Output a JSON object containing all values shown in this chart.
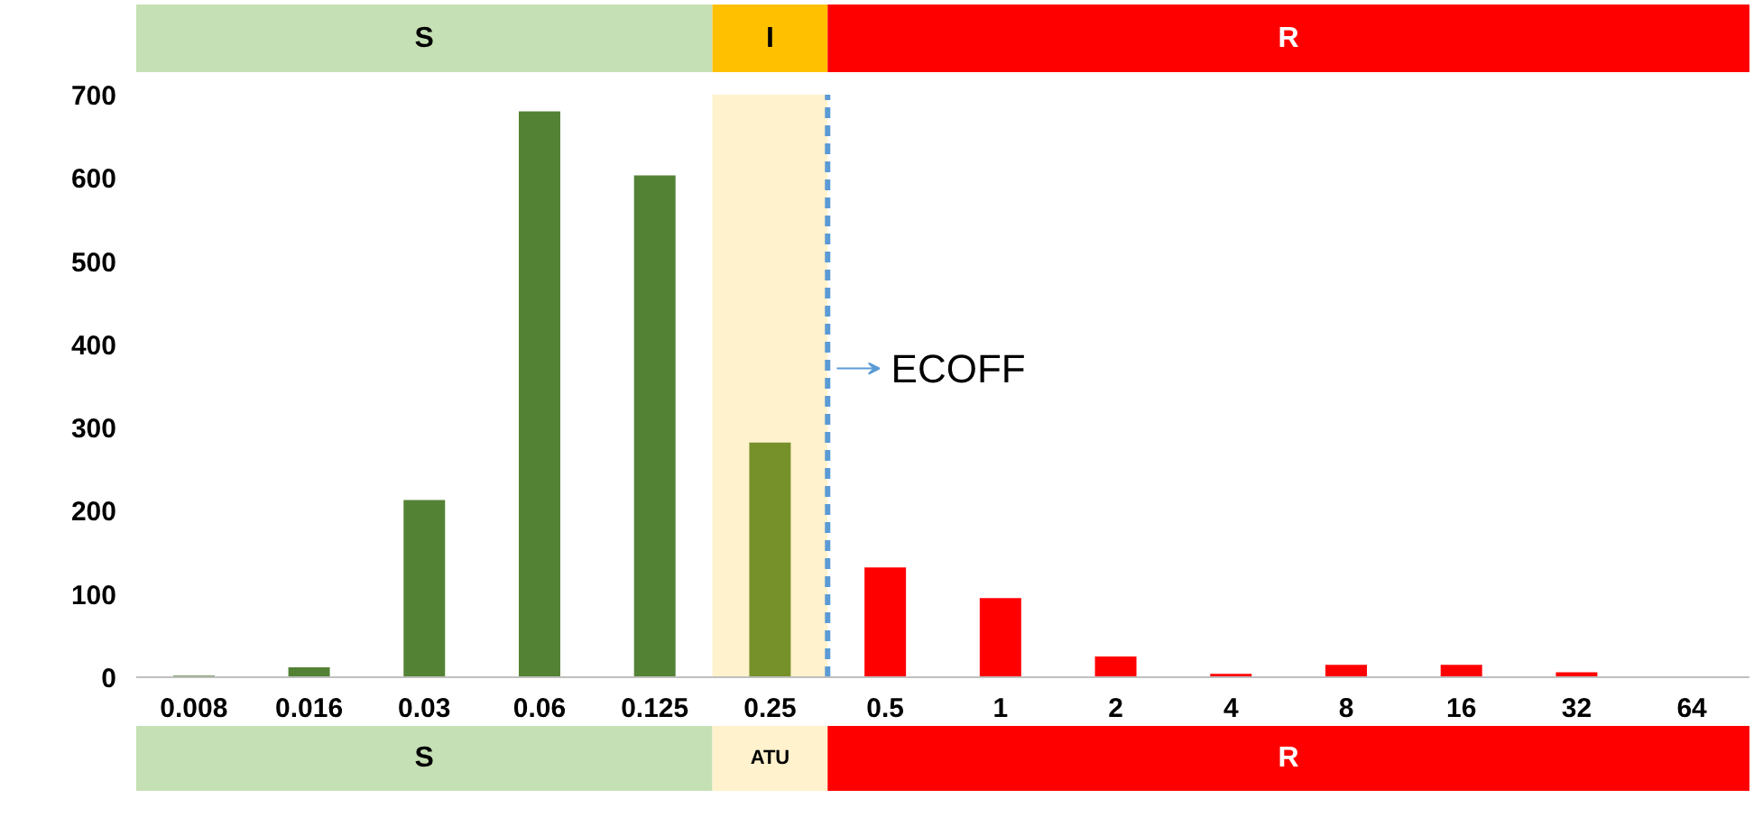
{
  "chart_data": {
    "type": "bar",
    "categories": [
      "0.008",
      "0.016",
      "0.03",
      "0.06",
      "0.125",
      "0.25",
      "0.5",
      "1",
      "2",
      "4",
      "8",
      "16",
      "32",
      "64"
    ],
    "values": [
      2,
      12,
      213,
      680,
      603,
      282,
      132,
      95,
      25,
      4,
      15,
      15,
      6,
      0
    ],
    "colors": [
      "#548235",
      "#548235",
      "#548235",
      "#548235",
      "#548235",
      "#76902a",
      "#ff0000",
      "#ff0000",
      "#ff0000",
      "#ff0000",
      "#ff0000",
      "#ff0000",
      "#ff0000",
      "#ff0000"
    ],
    "ylim": [
      0,
      700
    ],
    "yticks": [
      0,
      100,
      200,
      300,
      400,
      500,
      600,
      700
    ],
    "grid": false,
    "bands": [
      {
        "axis": "x",
        "from": "0.25",
        "to": "0.25",
        "color": "#fff2cc"
      }
    ],
    "ref_lines": [
      {
        "axis": "x",
        "value": "0.25",
        "label": "ECOFF",
        "color": "#5b9bd5",
        "line_style": "dashed"
      }
    ],
    "annotations": [
      "S",
      "I",
      "R",
      "S",
      "ATU",
      "R"
    ]
  }
}
